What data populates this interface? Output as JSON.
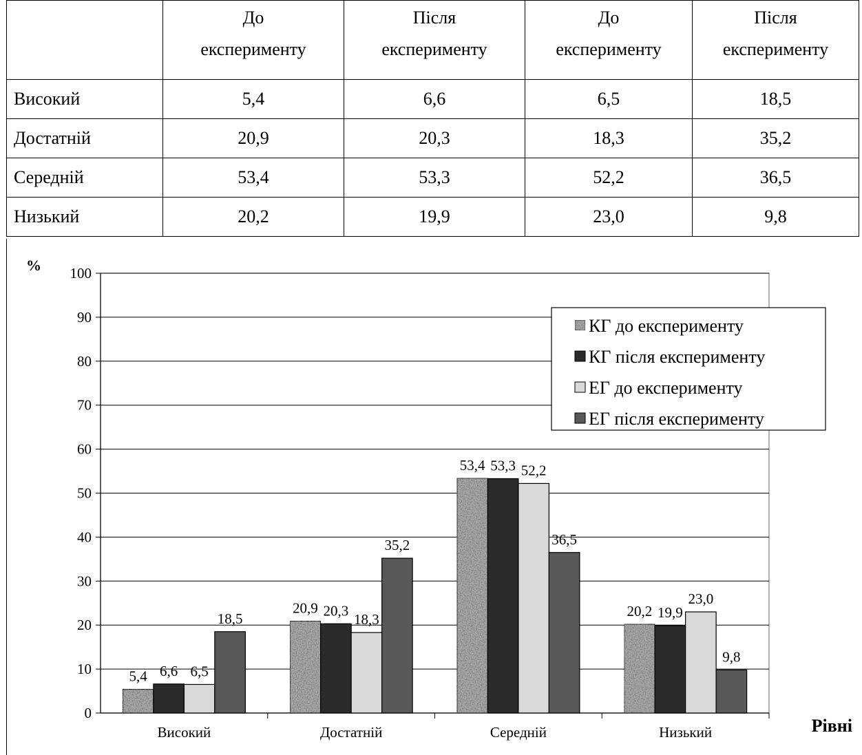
{
  "table": {
    "headers": [
      [
        "",
        ""
      ],
      [
        "До",
        "експерименту"
      ],
      [
        "Після",
        "експерименту"
      ],
      [
        "До",
        "експерименту"
      ],
      [
        "Після",
        "експерименту"
      ]
    ],
    "rows": [
      {
        "label": "Високий",
        "values": [
          "5,4",
          "6,6",
          "6,5",
          "18,5"
        ]
      },
      {
        "label": "Достатній",
        "values": [
          "20,9",
          "20,3",
          "18,3",
          "35,2"
        ]
      },
      {
        "label": "Середній",
        "values": [
          "53,4",
          "53,3",
          "52,2",
          "36,5"
        ]
      },
      {
        "label": "Низький",
        "values": [
          "20,2",
          "19,9",
          "23,0",
          "9,8"
        ]
      }
    ]
  },
  "chart_data": {
    "type": "bar",
    "categories": [
      "Високий",
      "Достатній",
      "Середній",
      "Низький"
    ],
    "series": [
      {
        "name": "КГ до експерименту",
        "values": [
          5.4,
          20.9,
          53.4,
          20.2
        ],
        "labels": [
          "5,4",
          "20,9",
          "53,4",
          "20,2"
        ],
        "color": "#a8a8a8",
        "pattern": "noise"
      },
      {
        "name": "КГ після експерименту",
        "values": [
          6.6,
          20.3,
          53.3,
          19.9
        ],
        "labels": [
          "6,6",
          "20,3",
          "53,3",
          "19,9"
        ],
        "color": "#2b2b2b"
      },
      {
        "name": "ЕГ до експерименту",
        "values": [
          6.5,
          18.3,
          52.2,
          23.0
        ],
        "labels": [
          "6,5",
          "18,3",
          "52,2",
          "23,0"
        ],
        "color": "#d9d9d9"
      },
      {
        "name": "ЕГ після експерименту",
        "values": [
          18.5,
          35.2,
          36.5,
          9.8
        ],
        "labels": [
          "18,5",
          "35,2",
          "36,5",
          "9,8"
        ],
        "color": "#595959"
      }
    ],
    "ylabel": "%",
    "xlabel": "Рівні",
    "ylim": [
      0,
      100
    ],
    "yticks": [
      0,
      10,
      20,
      30,
      40,
      50,
      60,
      70,
      80,
      90,
      100
    ],
    "grid": true,
    "legend": "top-right"
  }
}
